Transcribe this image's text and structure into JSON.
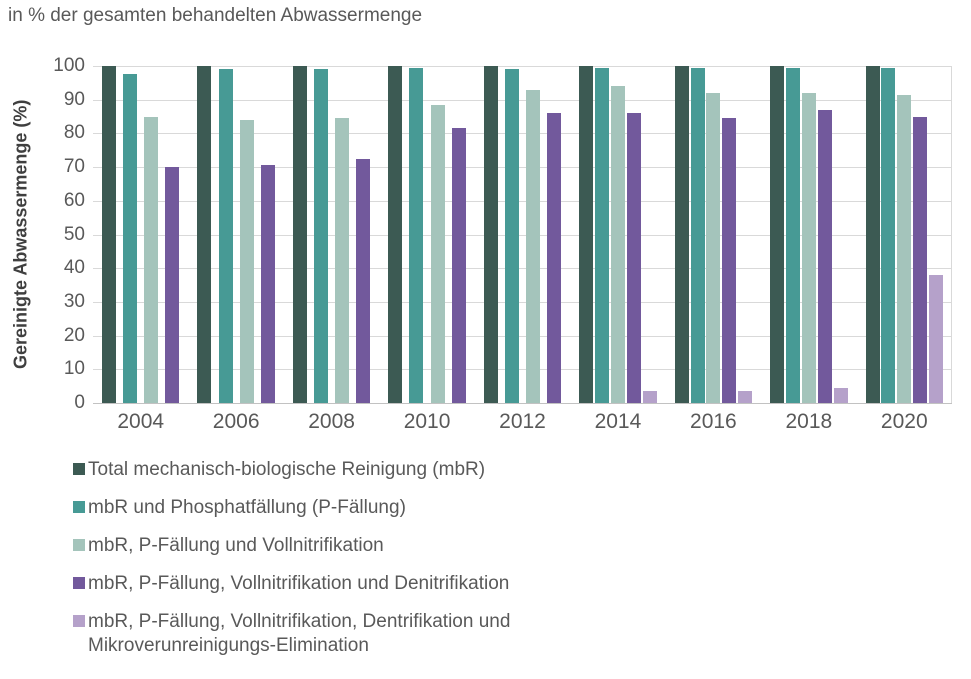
{
  "chart_data": {
    "type": "bar",
    "title": "in % der gesamten behandelten Abwassermenge",
    "ylabel": "Gereinigte Abwassermenge (%)",
    "xlabel": "",
    "ylim": [
      0,
      100
    ],
    "ytick_step": 10,
    "yticks": [
      0,
      10,
      20,
      30,
      40,
      50,
      60,
      70,
      80,
      90,
      100
    ],
    "grid": "horizontal",
    "legend_position": "bottom-left",
    "categories": [
      "2004",
      "2006",
      "2008",
      "2010",
      "2012",
      "2014",
      "2016",
      "2018",
      "2020"
    ],
    "series": [
      {
        "name": "Total mechanisch-biologische Reinigung (mbR)",
        "color": "#3C5A53",
        "values": [
          100,
          100,
          100,
          100,
          100,
          100,
          100,
          100,
          100
        ]
      },
      {
        "name": "mbR und Phosphatfällung (P-Fällung)",
        "color": "#479A95",
        "values": [
          97.5,
          99,
          99,
          99.5,
          99,
          99.5,
          99.5,
          99.5,
          99.5
        ]
      },
      {
        "name": "mbR, P-Fällung und Vollnitrifikation",
        "color": "#A4C4BB",
        "values": [
          85,
          84,
          84.5,
          88.5,
          93,
          94,
          92,
          92,
          91.5
        ]
      },
      {
        "name": "mbR, P-Fällung, Vollnitrifikation und Denitrifikation",
        "color": "#72599C",
        "values": [
          70,
          70.5,
          72.5,
          81.5,
          86,
          86,
          84.5,
          87,
          85
        ]
      },
      {
        "name": "mbR, P-Fällung, Vollnitrifikation, Dentrifikation und Mikroverunreinigungs-Elimination",
        "color": "#B5A1CA",
        "values": [
          null,
          null,
          null,
          null,
          null,
          3.5,
          3.5,
          4.5,
          38
        ]
      }
    ],
    "colors": {
      "gridline": "#d9d9d9",
      "axis_line": "#c2c2c2",
      "tick_text": "#595959",
      "title_text": "#595959",
      "y_title_text": "#3f3f3f"
    }
  }
}
